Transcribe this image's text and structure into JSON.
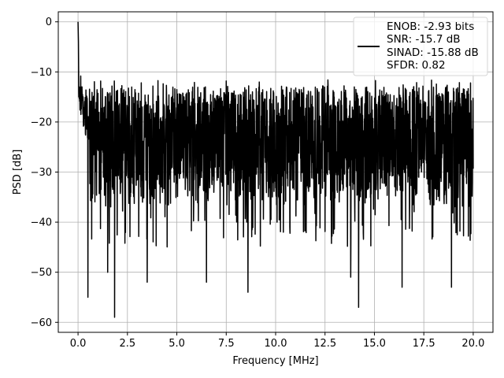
{
  "chart_data": {
    "type": "line",
    "xlabel": "Frequency [MHz]",
    "ylabel": "PSD [dB]",
    "xlim": [
      -1.0,
      21.0
    ],
    "ylim": [
      -62,
      2
    ],
    "xticks": [
      0,
      2.5,
      5,
      7.5,
      10,
      12.5,
      15,
      17.5,
      20
    ],
    "xtick_labels": [
      "0.0",
      "2.5",
      "5.0",
      "7.5",
      "10.0",
      "12.5",
      "15.0",
      "17.5",
      "20.0"
    ],
    "yticks": [
      0,
      -10,
      -20,
      -30,
      -40,
      -50,
      -60
    ],
    "ytick_labels": [
      "0",
      "−10",
      "−20",
      "−30",
      "−40",
      "−50",
      "−60"
    ],
    "grid": true,
    "legend_position": "upper-right",
    "line_color": "#000000",
    "legend_lines": [
      "ENOB: -2.93 bits",
      "SNR: -15.7 dB",
      "SINAD: -15.88 dB",
      "SFDR: 0.82"
    ],
    "series": [
      {
        "approximate": true,
        "x_range": [
          0,
          20
        ],
        "peak": {
          "x": 0.0,
          "y": 0
        },
        "noise_floor_mean": -24,
        "noise_upper_approx": -13,
        "noise_lower_approx": -45,
        "notable_dips": [
          {
            "x": 0.5,
            "y": -55
          },
          {
            "x": 1.5,
            "y": -50
          },
          {
            "x": 1.85,
            "y": -59
          },
          {
            "x": 3.5,
            "y": -52
          },
          {
            "x": 6.5,
            "y": -52
          },
          {
            "x": 8.6,
            "y": -54
          },
          {
            "x": 13.8,
            "y": -51
          },
          {
            "x": 14.2,
            "y": -57
          },
          {
            "x": 16.4,
            "y": -53
          },
          {
            "x": 18.9,
            "y": -53
          }
        ]
      }
    ]
  }
}
